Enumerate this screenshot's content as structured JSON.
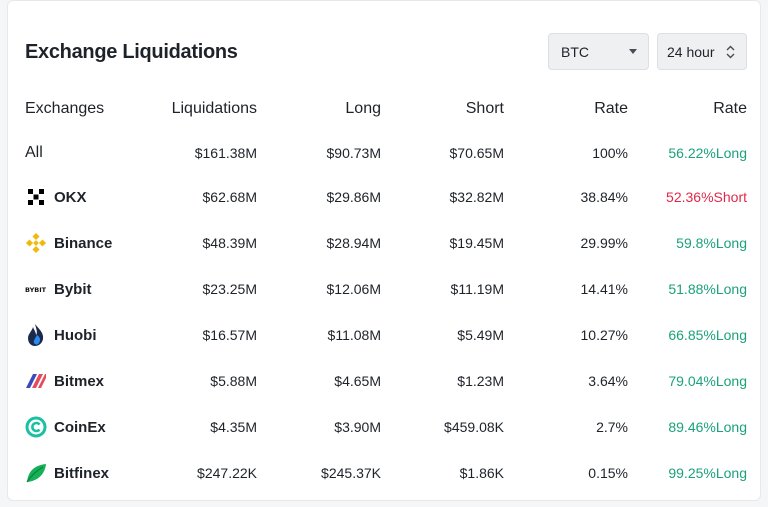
{
  "header": {
    "title": "Exchange Liquidations",
    "coin_select": "BTC",
    "period_select": "24 hour"
  },
  "table": {
    "columns": [
      "Exchanges",
      "Liquidations",
      "Long",
      "Short",
      "Rate",
      "Rate"
    ],
    "rows": [
      {
        "exchange": "All",
        "logo": "",
        "liquidations": "$161.38M",
        "long": "$90.73M",
        "short": "$70.65M",
        "rate": "100%",
        "side_rate": "56.22%Long",
        "side": "long"
      },
      {
        "exchange": "OKX",
        "logo": "okx-icon",
        "liquidations": "$62.68M",
        "long": "$29.86M",
        "short": "$32.82M",
        "rate": "38.84%",
        "side_rate": "52.36%Short",
        "side": "short"
      },
      {
        "exchange": "Binance",
        "logo": "binance-icon",
        "liquidations": "$48.39M",
        "long": "$28.94M",
        "short": "$19.45M",
        "rate": "29.99%",
        "side_rate": "59.8%Long",
        "side": "long"
      },
      {
        "exchange": "Bybit",
        "logo": "bybit-icon",
        "logo_text": "BYBIT",
        "liquidations": "$23.25M",
        "long": "$12.06M",
        "short": "$11.19M",
        "rate": "14.41%",
        "side_rate": "51.88%Long",
        "side": "long"
      },
      {
        "exchange": "Huobi",
        "logo": "huobi-icon",
        "liquidations": "$16.57M",
        "long": "$11.08M",
        "short": "$5.49M",
        "rate": "10.27%",
        "side_rate": "66.85%Long",
        "side": "long"
      },
      {
        "exchange": "Bitmex",
        "logo": "bitmex-icon",
        "liquidations": "$5.88M",
        "long": "$4.65M",
        "short": "$1.23M",
        "rate": "3.64%",
        "side_rate": "79.04%Long",
        "side": "long"
      },
      {
        "exchange": "CoinEx",
        "logo": "coinex-icon",
        "liquidations": "$4.35M",
        "long": "$3.90M",
        "short": "$459.08K",
        "rate": "2.7%",
        "side_rate": "89.46%Long",
        "side": "long"
      },
      {
        "exchange": "Bitfinex",
        "logo": "bitfinex-icon",
        "liquidations": "$247.22K",
        "long": "$245.37K",
        "short": "$1.86K",
        "rate": "0.15%",
        "side_rate": "99.25%Long",
        "side": "long"
      }
    ]
  },
  "colors": {
    "long": "#1ba27a",
    "short": "#e0294a",
    "binance": "#f0b90b",
    "huobi": "#1f6fd1",
    "bitmex": "#e34b5e",
    "coinex": "#19c0a3",
    "bitfinex": "#16b157"
  }
}
